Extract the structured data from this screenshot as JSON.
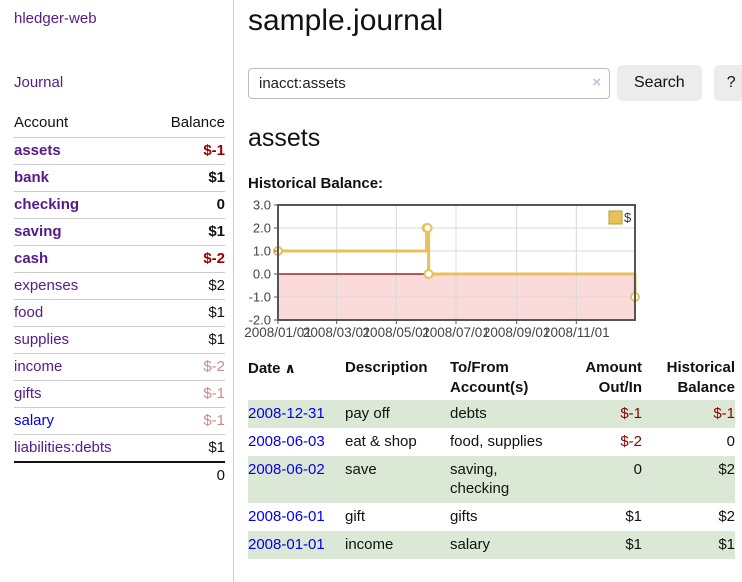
{
  "sidebar": {
    "brand": "hledger-web",
    "journal_link": "Journal",
    "accounts_table": {
      "account_header": "Account",
      "balance_header": "Balance",
      "rows": [
        {
          "name": "assets",
          "balance": "$-1"
        },
        {
          "name": "bank",
          "balance": "$1"
        },
        {
          "name": "checking",
          "balance": "0"
        },
        {
          "name": "saving",
          "balance": "$1"
        },
        {
          "name": "cash",
          "balance": "$-2"
        },
        {
          "name": "expenses",
          "balance": "$2"
        },
        {
          "name": "food",
          "balance": "$1"
        },
        {
          "name": "supplies",
          "balance": "$1"
        },
        {
          "name": "income",
          "balance": "$-2"
        },
        {
          "name": "gifts",
          "balance": "$-1"
        },
        {
          "name": "salary",
          "balance": "$-1"
        },
        {
          "name": "liabilities:debts",
          "balance": "$1"
        }
      ],
      "total": "0"
    }
  },
  "header": {
    "title": "sample.journal"
  },
  "search": {
    "value": "inacct:assets",
    "clear_icon": "×",
    "button_label": "Search",
    "help_label": "?"
  },
  "main": {
    "account_title": "assets",
    "chart_label": "Historical Balance:"
  },
  "chart_data": {
    "type": "line",
    "style": "step",
    "title": "Historical Balance",
    "series": [
      {
        "name": "$",
        "points": [
          [
            "2008-01-01",
            1
          ],
          [
            "2008-06-01",
            2
          ],
          [
            "2008-06-02",
            2
          ],
          [
            "2008-06-03",
            0
          ],
          [
            "2008-12-31",
            -1
          ]
        ]
      }
    ],
    "xlim": [
      "2008-01-01",
      "2008-12-31"
    ],
    "ylim": [
      -2.0,
      3.0
    ],
    "x_ticks": [
      "2008/01/01",
      "2008/03/01",
      "2008/05/01",
      "2008/07/01",
      "2008/09/01",
      "2008/11/01"
    ],
    "y_ticks": [
      3.0,
      2.0,
      1.0,
      0.0,
      -1.0,
      -2.0
    ],
    "y_tick_labels": [
      "3.0",
      "2.0",
      "1.0",
      "0.0",
      "-1.0",
      "-2.0"
    ],
    "grid": true,
    "legend": {
      "label": "$",
      "position": "top-right"
    },
    "line_color": "#e9c159",
    "negative_region_color": "#fbdada",
    "zero_line_color": "#8b0000",
    "grid_color": "#d8d8d8",
    "border_color": "#555555",
    "tick_label_color": "#444444"
  },
  "register": {
    "headers": {
      "date": "Date",
      "sort_icon": "∧",
      "description": "Description",
      "tofrom_line1": "To/From",
      "tofrom_line2": "Account(s)",
      "amount_line1": "Amount",
      "amount_line2": "Out/In",
      "balance_line1": "Historical",
      "balance_line2": "Balance"
    },
    "rows": [
      {
        "date": "2008-12-31",
        "description": "pay off",
        "accounts": "debts",
        "amount": "$-1",
        "balance": "$-1"
      },
      {
        "date": "2008-06-03",
        "description": "eat & shop",
        "accounts": "food, supplies",
        "amount": "$-2",
        "balance": "0"
      },
      {
        "date": "2008-06-02",
        "description": "save",
        "accounts": "saving, checking",
        "amount": "0",
        "balance": "$2"
      },
      {
        "date": "2008-06-01",
        "description": "gift",
        "accounts": "gifts",
        "amount": "$1",
        "balance": "$2"
      },
      {
        "date": "2008-01-01",
        "description": "income",
        "accounts": "salary",
        "amount": "$1",
        "balance": "$1"
      }
    ]
  },
  "colors": {
    "link_purple": "#551a8b",
    "link_blue": "#0000ee",
    "negative_bold_red": "#990000",
    "negative_pale_red": "#c98b8b",
    "negative_table_red": "#8b0000",
    "row_stripe_green": "#dce8d6",
    "button_gray": "#ececec"
  }
}
